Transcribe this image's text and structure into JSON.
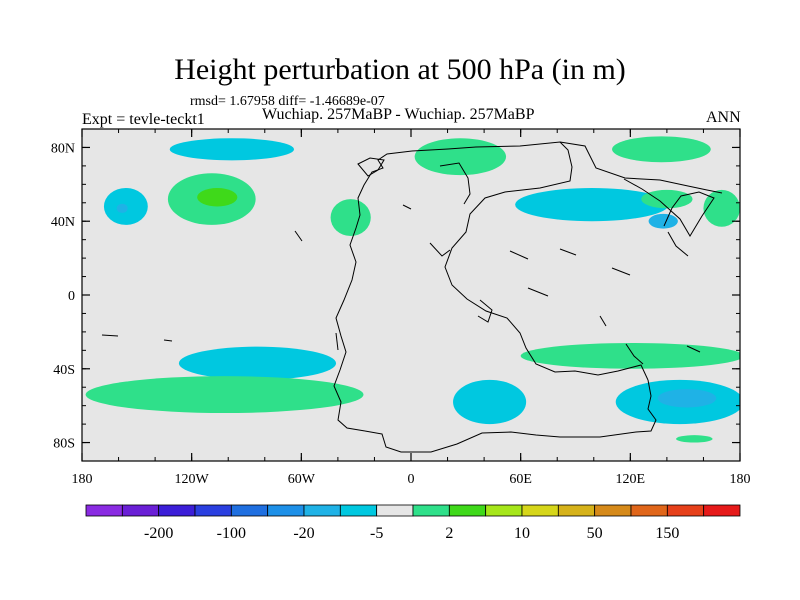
{
  "chart_data": {
    "type": "heatmap",
    "title": "Height perturbation at 500 hPa (in m)",
    "stats_line": "rmsd= 1.67958 diff= -1.46689e-07",
    "left_label": "Expt = tevle-teckt1",
    "center_label": "Wuchiap. 257MaBP - Wuchiap. 257MaBP",
    "right_label": "ANN",
    "xlim": [
      -180,
      180
    ],
    "ylim": [
      -90,
      90
    ],
    "x_ticks": [
      {
        "value": -180,
        "label": "180"
      },
      {
        "value": -120,
        "label": "120W"
      },
      {
        "value": -60,
        "label": "60W"
      },
      {
        "value": 0,
        "label": "0"
      },
      {
        "value": 60,
        "label": "60E"
      },
      {
        "value": 120,
        "label": "120E"
      },
      {
        "value": 180,
        "label": "180"
      }
    ],
    "y_ticks": [
      {
        "value": 80,
        "label": "80N"
      },
      {
        "value": 40,
        "label": "40N"
      },
      {
        "value": 0,
        "label": "0"
      },
      {
        "value": -40,
        "label": "40S"
      },
      {
        "value": -80,
        "label": "80S"
      }
    ],
    "x_minor_step": 20,
    "y_minor_step": 10,
    "colorbar": {
      "colors": [
        "#8a2be2",
        "#6a1fd6",
        "#3c1ed8",
        "#2a3fe0",
        "#1f6fe0",
        "#1d90e8",
        "#1fb2e6",
        "#00c8e0",
        "#e6e6e6",
        "#2fe08a",
        "#3fd91a",
        "#a6e61a",
        "#d6d61a",
        "#d6b21a",
        "#d68a1a",
        "#e0661a",
        "#e6401a",
        "#e61a1a"
      ],
      "labels": [
        "-200",
        "-100",
        "-20",
        "-5",
        "2",
        "10",
        "50",
        "150"
      ],
      "label_after_box": [
        1,
        3,
        5,
        7,
        9,
        11,
        13,
        15
      ]
    },
    "regions": [
      {
        "name": "n-pacific-west-low",
        "cx": -156,
        "cy": 48,
        "rx": 12,
        "ry": 10,
        "color": "#00c8e0"
      },
      {
        "name": "n-pacific-west-low-core",
        "cx": -158,
        "cy": 47,
        "rx": 3,
        "ry": 2.5,
        "color": "#1fb2e6"
      },
      {
        "name": "n-america-high",
        "cx": -109,
        "cy": 52,
        "rx": 24,
        "ry": 14,
        "color": "#2fe08a"
      },
      {
        "name": "n-america-high-core",
        "cx": -106,
        "cy": 53,
        "rx": 11,
        "ry": 5,
        "color": "#3fd91a"
      },
      {
        "name": "arctic-canada-low",
        "cx": -98,
        "cy": 79,
        "rx": 34,
        "ry": 6,
        "color": "#00c8e0"
      },
      {
        "name": "n-atlantic-high",
        "cx": -33,
        "cy": 42,
        "rx": 11,
        "ry": 10,
        "color": "#2fe08a"
      },
      {
        "name": "siberia-high",
        "cx": 27,
        "cy": 75,
        "rx": 25,
        "ry": 10,
        "color": "#2fe08a"
      },
      {
        "name": "asia-low",
        "cx": 99,
        "cy": 49,
        "rx": 42,
        "ry": 9,
        "color": "#00c8e0"
      },
      {
        "name": "n-pacific-east-high",
        "cx": 137,
        "cy": 79,
        "rx": 27,
        "ry": 7,
        "color": "#2fe08a"
      },
      {
        "name": "nw-pacific-high",
        "cx": 140,
        "cy": 52,
        "rx": 14,
        "ry": 5,
        "color": "#2fe08a"
      },
      {
        "name": "nw-pacific-low-core",
        "cx": 138,
        "cy": 40,
        "rx": 8,
        "ry": 4,
        "color": "#1fb2e6"
      },
      {
        "name": "dateline-high",
        "cx": 170,
        "cy": 47,
        "rx": 10,
        "ry": 10,
        "color": "#2fe08a"
      },
      {
        "name": "s-pacific-low",
        "cx": -84,
        "cy": -37,
        "rx": 43,
        "ry": 9,
        "color": "#00c8e0"
      },
      {
        "name": "southern-ocean-high",
        "cx": -102,
        "cy": -54,
        "rx": 76,
        "ry": 10,
        "color": "#2fe08a"
      },
      {
        "name": "s-atlantic-low",
        "cx": 43,
        "cy": -58,
        "rx": 20,
        "ry": 12,
        "color": "#00c8e0"
      },
      {
        "name": "s-indian-high",
        "cx": 121,
        "cy": -33,
        "rx": 61,
        "ry": 7,
        "color": "#2fe08a"
      },
      {
        "name": "s-pacific-east-low",
        "cx": 147,
        "cy": -58,
        "rx": 35,
        "ry": 12,
        "color": "#00c8e0"
      },
      {
        "name": "s-pacific-east-low-core",
        "cx": 151,
        "cy": -56,
        "rx": 16,
        "ry": 5,
        "color": "#1fb2e6"
      },
      {
        "name": "antarctic-high",
        "cx": 155,
        "cy": -78,
        "rx": 10,
        "ry": 2,
        "color": "#2fe08a"
      }
    ]
  }
}
